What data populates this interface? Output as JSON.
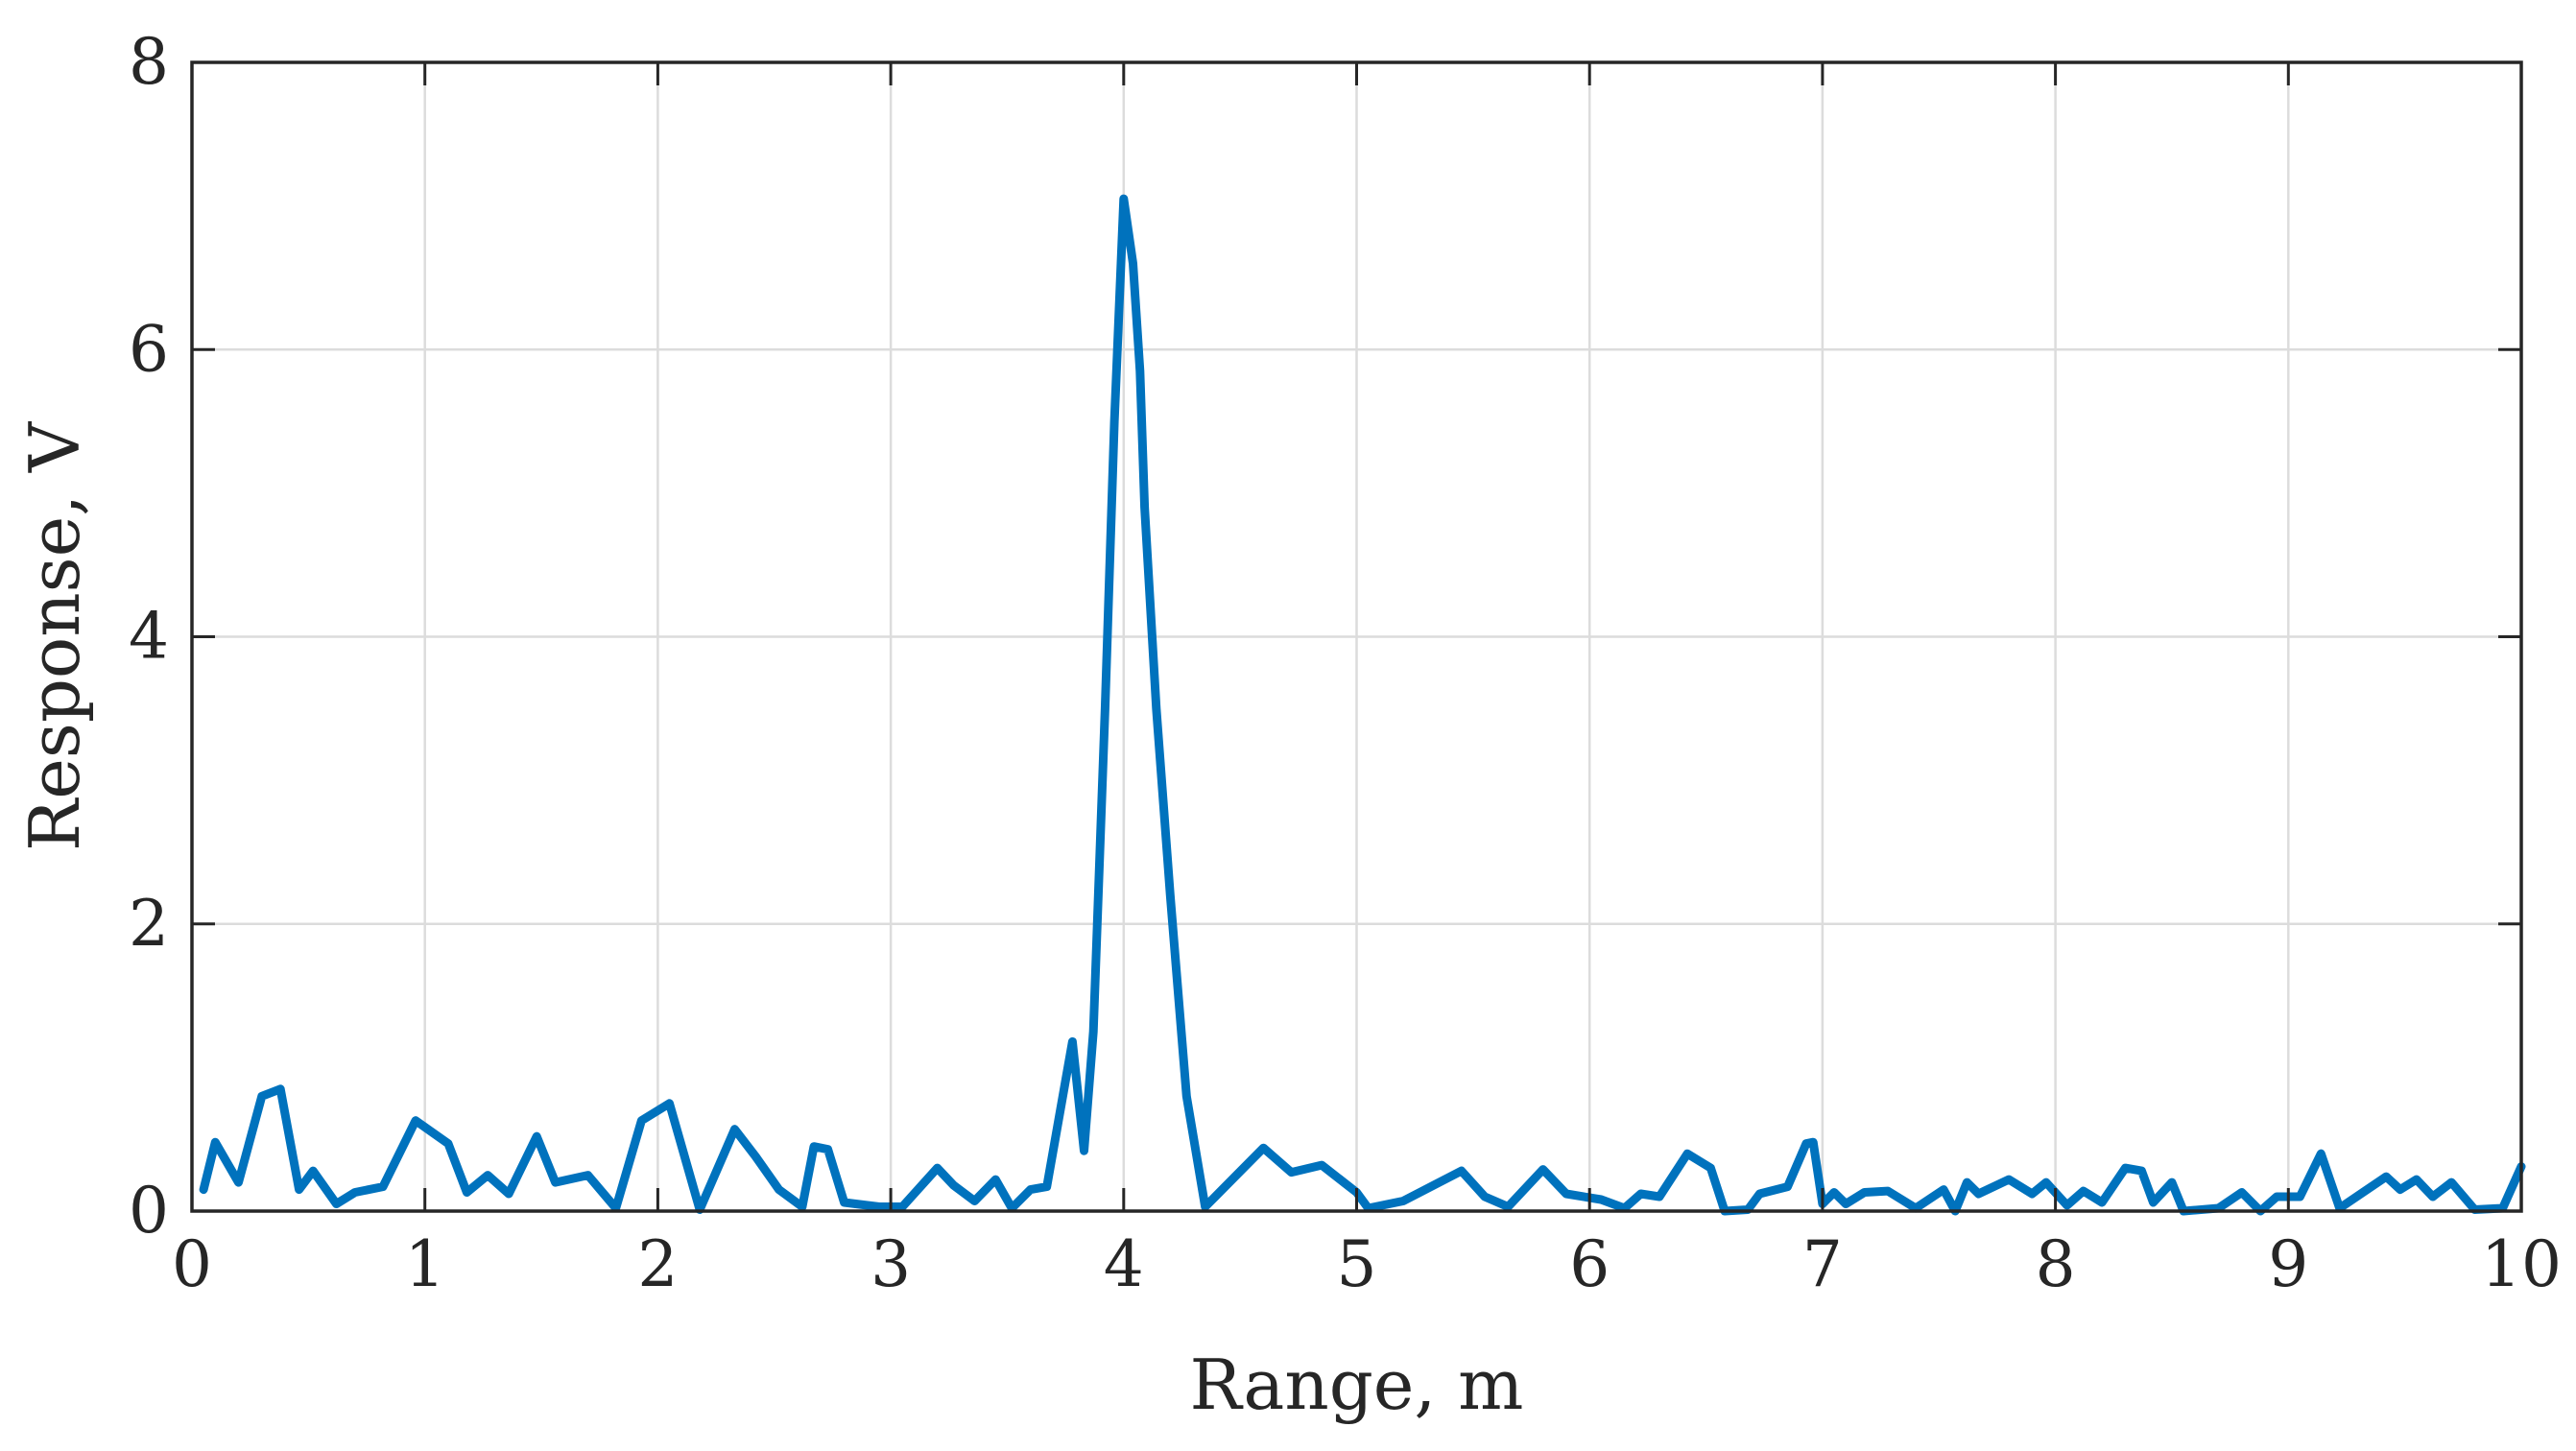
{
  "chart_data": {
    "type": "line",
    "title": "",
    "xlabel": "Range, m",
    "ylabel": "Response, V",
    "xlim": [
      0,
      10
    ],
    "ylim": [
      0,
      8
    ],
    "xticks": [
      "0",
      "1",
      "2",
      "3",
      "4",
      "5",
      "6",
      "7",
      "8",
      "9",
      "10"
    ],
    "yticks": [
      "0",
      "2",
      "4",
      "6",
      "8"
    ],
    "grid": true,
    "colors": {
      "series": "#0072BD",
      "axes": "#262626",
      "grid": "#dcdcdc"
    },
    "series": [
      {
        "color": "#0072BD",
        "x": [
          0.05,
          0.1,
          0.2,
          0.3,
          0.38,
          0.46,
          0.52,
          0.62,
          0.7,
          0.82,
          0.96,
          1.1,
          1.18,
          1.27,
          1.36,
          1.48,
          1.56,
          1.7,
          1.82,
          1.93,
          2.05,
          2.18,
          2.33,
          2.42,
          2.52,
          2.62,
          2.67,
          2.73,
          2.8,
          2.95,
          3.05,
          3.2,
          3.27,
          3.36,
          3.45,
          3.52,
          3.6,
          3.67,
          3.78,
          3.83,
          3.87,
          3.92,
          3.96,
          4.0,
          4.04,
          4.07,
          4.09,
          4.14,
          4.2,
          4.27,
          4.35,
          4.6,
          4.72,
          4.85,
          5.0,
          5.05,
          5.2,
          5.45,
          5.55,
          5.65,
          5.8,
          5.9,
          6.05,
          6.15,
          6.22,
          6.3,
          6.42,
          6.52,
          6.58,
          6.68,
          6.73,
          6.85,
          6.93,
          6.96,
          7.0,
          7.05,
          7.1,
          7.18,
          7.28,
          7.4,
          7.52,
          7.57,
          7.62,
          7.67,
          7.8,
          7.9,
          7.96,
          8.05,
          8.12,
          8.2,
          8.3,
          8.37,
          8.42,
          8.5,
          8.55,
          8.7,
          8.8,
          8.88,
          8.95,
          9.05,
          9.14,
          9.22,
          9.32,
          9.42,
          9.48,
          9.55,
          9.62,
          9.7,
          9.8,
          9.92,
          10.0
        ],
        "y": [
          0.15,
          0.48,
          0.2,
          0.8,
          0.85,
          0.15,
          0.28,
          0.05,
          0.13,
          0.17,
          0.63,
          0.47,
          0.13,
          0.25,
          0.12,
          0.52,
          0.2,
          0.25,
          0.02,
          0.63,
          0.75,
          0.01,
          0.57,
          0.38,
          0.15,
          0.03,
          0.45,
          0.43,
          0.06,
          0.03,
          0.03,
          0.3,
          0.18,
          0.07,
          0.22,
          0.02,
          0.15,
          0.17,
          1.18,
          0.42,
          1.25,
          3.5,
          5.5,
          7.05,
          6.6,
          5.85,
          4.9,
          3.5,
          2.2,
          0.8,
          0.03,
          0.44,
          0.27,
          0.32,
          0.13,
          0.02,
          0.07,
          0.28,
          0.1,
          0.03,
          0.29,
          0.12,
          0.08,
          0.02,
          0.12,
          0.1,
          0.4,
          0.3,
          0.0,
          0.01,
          0.12,
          0.17,
          0.47,
          0.48,
          0.05,
          0.13,
          0.05,
          0.13,
          0.14,
          0.02,
          0.15,
          0.0,
          0.2,
          0.12,
          0.22,
          0.12,
          0.2,
          0.04,
          0.14,
          0.06,
          0.3,
          0.28,
          0.06,
          0.2,
          0.0,
          0.02,
          0.13,
          0.0,
          0.1,
          0.1,
          0.4,
          0.02,
          0.13,
          0.24,
          0.15,
          0.22,
          0.1,
          0.2,
          0.01,
          0.02,
          0.31
        ]
      }
    ]
  }
}
